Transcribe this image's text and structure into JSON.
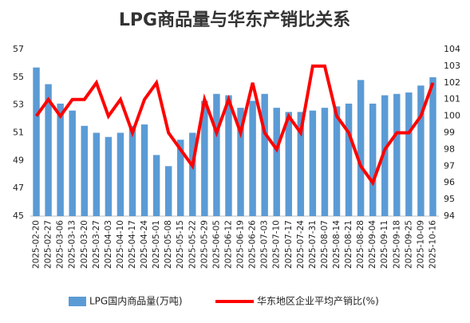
{
  "chart_data": {
    "type": "bar_line",
    "title": "LPG商品量与华东产销比关系",
    "categories": [
      "2025-02-20",
      "2025-02-27",
      "2025-03-06",
      "2025-03-13",
      "2025-03-20",
      "2025-03-27",
      "2025-04-03",
      "2025-04-10",
      "2025-04-17",
      "2025-04-24",
      "2025-05-01",
      "2025-05-08",
      "2025-05-15",
      "2025-05-22",
      "2025-05-29",
      "2025-06-05",
      "2025-06-12",
      "2025-06-19",
      "2025-06-26",
      "2025-07-03",
      "2025-07-10",
      "2025-07-17",
      "2025-07-24",
      "2025-07-31",
      "2025-08-07",
      "2025-08-14",
      "2025-08-21",
      "2025-08-28",
      "2025-09-04",
      "2025-09-11",
      "2025-09-18",
      "2025-09-25",
      "2025-10-09",
      "2025-10-16"
    ],
    "series": [
      {
        "name": "LPG国内商品量(万吨)",
        "type": "bar",
        "color": "#5b9bd5",
        "axis": "y",
        "values": [
          55.7,
          54.5,
          53.1,
          52.6,
          51.5,
          51.0,
          50.7,
          51.0,
          51.5,
          51.6,
          49.4,
          48.6,
          50.5,
          51.0,
          53.3,
          53.8,
          53.7,
          52.8,
          53.3,
          53.8,
          52.8,
          52.5,
          52.5,
          52.6,
          52.8,
          52.9,
          53.1,
          54.8,
          53.1,
          53.7,
          53.8,
          53.9,
          54.4,
          55.0
        ]
      },
      {
        "name": "华东地区企业平均产销比(%)",
        "type": "line",
        "color": "#ff0000",
        "axis": "y2",
        "values": [
          100,
          101,
          100,
          101,
          101,
          102,
          100,
          101,
          99,
          101,
          102,
          99,
          98,
          97,
          101,
          99,
          101,
          99,
          102,
          99,
          98,
          100,
          99,
          103,
          103,
          100,
          99,
          97,
          96,
          98,
          99,
          99,
          100,
          102
        ]
      }
    ],
    "ylim": [
      45,
      57
    ],
    "yticks": [
      45,
      47,
      49,
      51,
      53,
      55,
      57
    ],
    "y2lim": [
      94,
      104
    ],
    "y2ticks": [
      94,
      95,
      96,
      97,
      98,
      99,
      100,
      101,
      102,
      103,
      104
    ],
    "legend": "bottom"
  }
}
